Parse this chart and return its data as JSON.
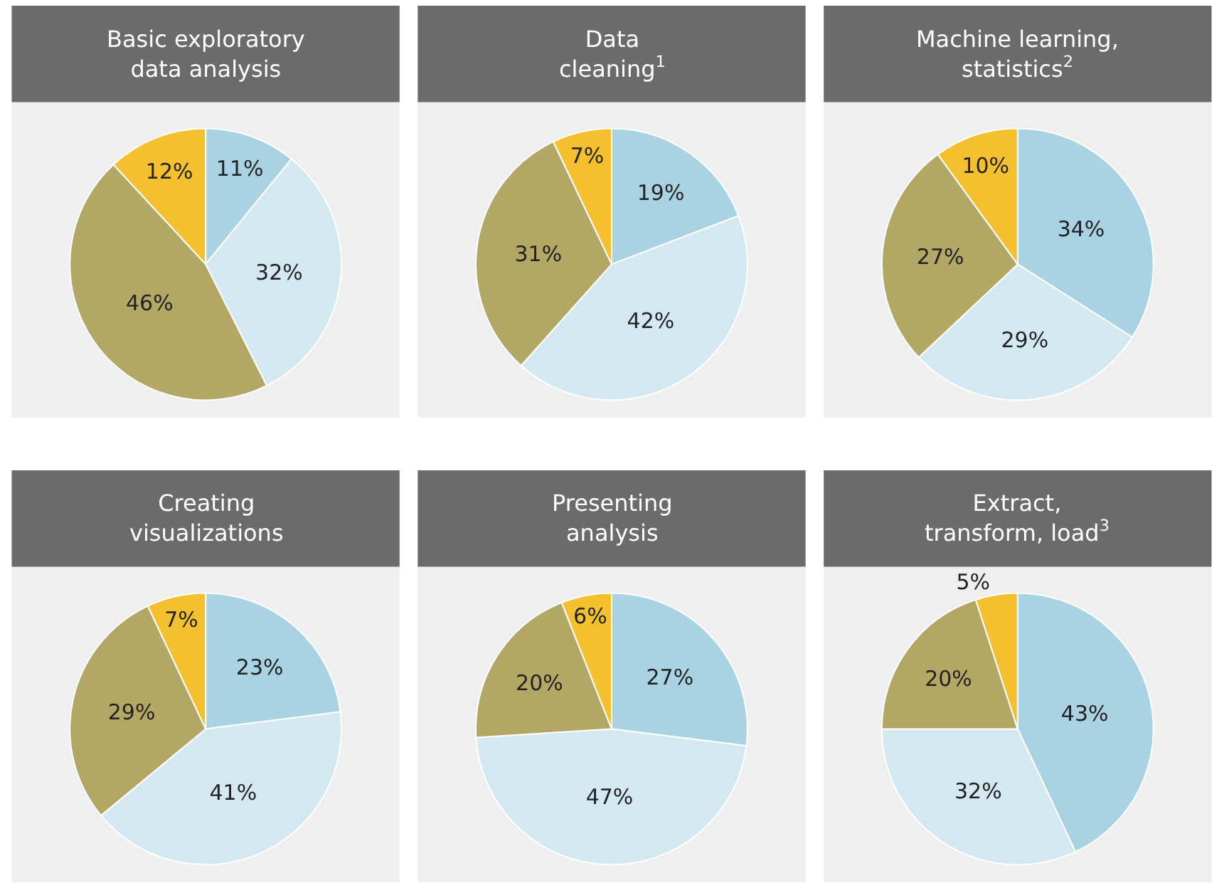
{
  "chart_data": [
    {
      "type": "pie",
      "title": "Basic exploratory\ndata analysis",
      "categories": [
        null,
        null,
        null,
        null
      ],
      "values": [
        11,
        32,
        46,
        12
      ],
      "value_labels": [
        "11%",
        "32%",
        "46%",
        "12%"
      ],
      "colors": [
        "#a9d3e3",
        "#d4e8f1",
        "#b3a765",
        "#f4c02e"
      ]
    },
    {
      "type": "pie",
      "title": "Data\ncleaning$^{1}$",
      "categories": [
        null,
        null,
        null,
        null
      ],
      "values": [
        19,
        42,
        31,
        7
      ],
      "value_labels": [
        "19%",
        "42%",
        "31%",
        "7%"
      ],
      "colors": [
        "#a9d3e3",
        "#d4e8f1",
        "#b3a765",
        "#f4c02e"
      ]
    },
    {
      "type": "pie",
      "title": "Machine learning,\nstatistics$^{2}$",
      "categories": [
        null,
        null,
        null,
        null
      ],
      "values": [
        34,
        29,
        27,
        10
      ],
      "value_labels": [
        "34%",
        "29%",
        "27%",
        "10%"
      ],
      "colors": [
        "#a9d3e3",
        "#d4e8f1",
        "#b3a765",
        "#f4c02e"
      ]
    },
    {
      "type": "pie",
      "title": "Creating\nvisualizations",
      "categories": [
        null,
        null,
        null,
        null
      ],
      "values": [
        23,
        41,
        29,
        7
      ],
      "value_labels": [
        "23%",
        "41%",
        "29%",
        "7%"
      ],
      "colors": [
        "#a9d3e3",
        "#d4e8f1",
        "#b3a765",
        "#f4c02e"
      ]
    },
    {
      "type": "pie",
      "title": "Presenting\nanalysis",
      "categories": [
        null,
        null,
        null,
        null
      ],
      "values": [
        27,
        47,
        20,
        6
      ],
      "value_labels": [
        "27%",
        "47%",
        "20%",
        "6%"
      ],
      "colors": [
        "#a9d3e3",
        "#d4e8f1",
        "#b3a765",
        "#f4c02e"
      ]
    },
    {
      "type": "pie",
      "title": "Extract,\ntransform, load$^{3}$",
      "categories": [
        null,
        null,
        null,
        null
      ],
      "values": [
        43,
        32,
        20,
        5
      ],
      "value_labels": [
        "43%",
        "32%",
        "20%",
        "5%"
      ],
      "colors": [
        "#a9d3e3",
        "#d4e8f1",
        "#b3a765",
        "#f4c02e"
      ]
    }
  ]
}
